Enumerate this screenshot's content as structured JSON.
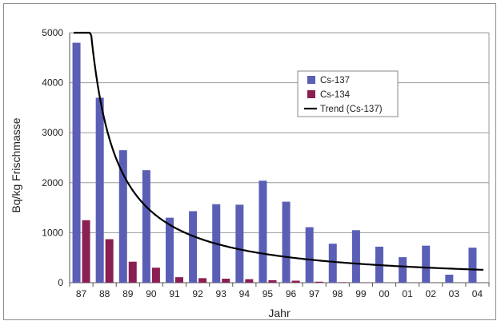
{
  "chart_data": {
    "type": "bar",
    "title": "",
    "xlabel": "Jahr",
    "ylabel": "Bq/kg Frischmasse",
    "ylim": [
      0,
      5000
    ],
    "yticks": [
      "0",
      "1000",
      "2000",
      "3000",
      "4000",
      "5000"
    ],
    "categories": [
      "87",
      "88",
      "89",
      "90",
      "91",
      "92",
      "93",
      "94",
      "95",
      "96",
      "97",
      "98",
      "99",
      "00",
      "01",
      "02",
      "03",
      "04"
    ],
    "series": [
      {
        "name": "Cs-137",
        "color": "#5a5fb5",
        "values": [
          4800,
          3700,
          2650,
          2250,
          1300,
          1430,
          1570,
          1560,
          2040,
          1620,
          1110,
          780,
          1050,
          720,
          510,
          740,
          160,
          700
        ]
      },
      {
        "name": "Cs-134",
        "color": "#8a1f52",
        "values": [
          1250,
          870,
          420,
          300,
          110,
          90,
          80,
          70,
          50,
          40,
          20,
          10,
          5,
          0,
          0,
          0,
          0,
          0
        ]
      }
    ],
    "trend": {
      "name": "Trend (Cs-137)",
      "color": "#000000",
      "type": "power-decay"
    },
    "grid": "horizontal",
    "legend_position": "upper-right"
  }
}
